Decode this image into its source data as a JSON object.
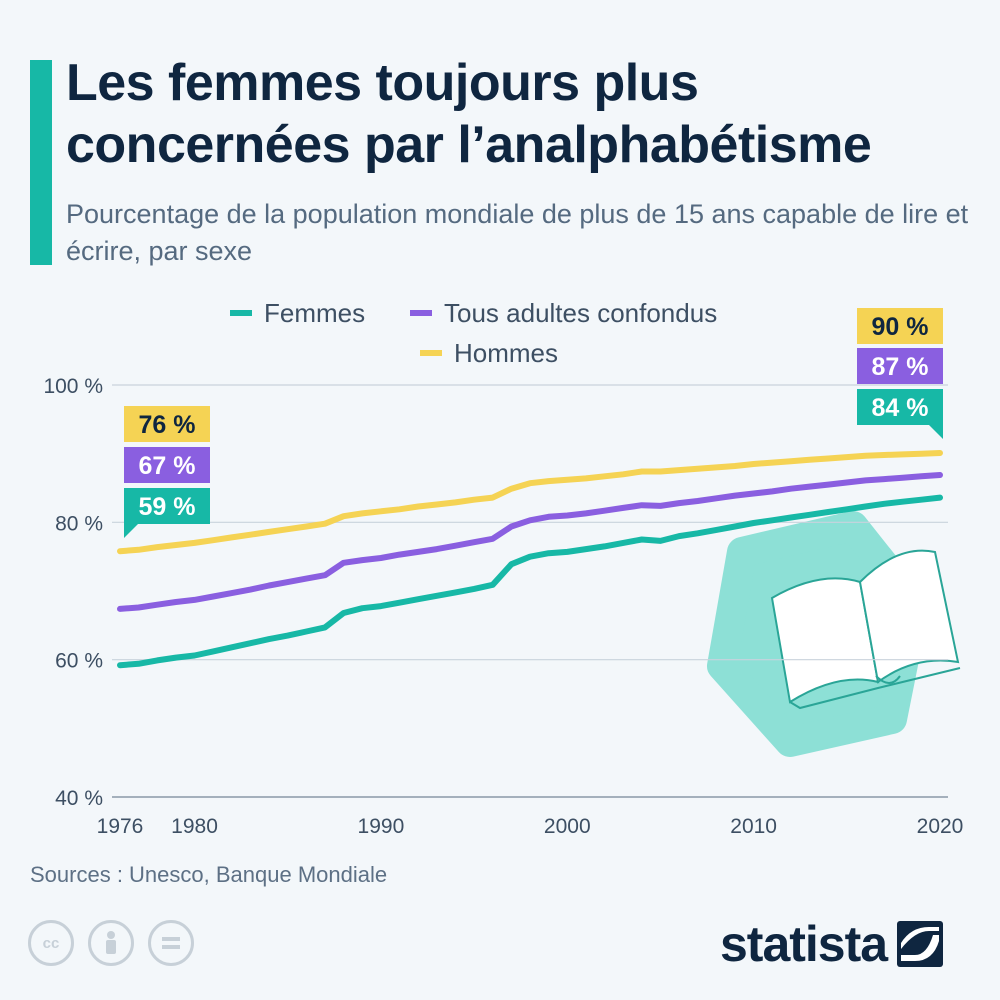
{
  "header": {
    "title": "Les femmes toujours plus concernées par l’analphabétisme",
    "subtitle": "Pourcentage de la population mondiale de plus de 15 ans capable de lire et écrire, par sexe"
  },
  "footer": {
    "source": "Sources : Unesco, Banque Mondiale",
    "brand": "statista",
    "license_icons": [
      "cc-icon",
      "attribution-icon",
      "no-derivatives-icon"
    ]
  },
  "colors": {
    "accent": "#17b8a6",
    "femmes": "#17b8a6",
    "tous": "#8a5fe0",
    "hommes": "#f5d354",
    "title": "#0f2640"
  },
  "chart_data": {
    "type": "line",
    "title": "Les femmes toujours plus concernées par l’analphabétisme",
    "subtitle": "Pourcentage de la population mondiale de plus de 15 ans capable de lire et écrire, par sexe",
    "xlabel": "",
    "ylabel": "",
    "xlim": [
      1976,
      2020
    ],
    "ylim": [
      40,
      100
    ],
    "yticks": [
      40,
      60,
      80,
      100
    ],
    "ytick_labels": [
      "40 %",
      "60 %",
      "80 %",
      "100 %"
    ],
    "xticks": [
      1976,
      1980,
      1990,
      2000,
      2010,
      2020
    ],
    "xtick_labels": [
      "1976",
      "1980",
      "1990",
      "2000",
      "2010",
      "2020"
    ],
    "grid": true,
    "legend_position": "top-center",
    "x": [
      1976,
      1977,
      1978,
      1979,
      1980,
      1981,
      1982,
      1983,
      1984,
      1985,
      1986,
      1987,
      1988,
      1989,
      1990,
      1991,
      1992,
      1993,
      1994,
      1995,
      1996,
      1997,
      1998,
      1999,
      2000,
      2001,
      2002,
      2003,
      2004,
      2005,
      2006,
      2007,
      2008,
      2009,
      2010,
      2011,
      2012,
      2013,
      2014,
      2015,
      2016,
      2017,
      2018,
      2019,
      2020
    ],
    "series": [
      {
        "key": "femmes",
        "name": "Femmes",
        "values": [
          59.2,
          59.4,
          59.9,
          60.3,
          60.6,
          61.2,
          61.8,
          62.4,
          63,
          63.5,
          64.1,
          64.7,
          66.8,
          67.5,
          67.8,
          68.3,
          68.8,
          69.3,
          69.8,
          70.3,
          70.9,
          73.9,
          75,
          75.5,
          75.7,
          76.1,
          76.5,
          77,
          77.5,
          77.3,
          78,
          78.4,
          78.9,
          79.4,
          79.9,
          80.3,
          80.7,
          81.1,
          81.5,
          81.9,
          82.3,
          82.7,
          83,
          83.3,
          83.6
        ],
        "start_label": "59 %",
        "end_label": "84 %"
      },
      {
        "key": "tous",
        "name": "Tous adultes confondus",
        "values": [
          67.4,
          67.6,
          68,
          68.4,
          68.7,
          69.2,
          69.7,
          70.2,
          70.8,
          71.3,
          71.8,
          72.3,
          74.1,
          74.5,
          74.8,
          75.3,
          75.7,
          76.1,
          76.6,
          77.1,
          77.6,
          79.4,
          80.3,
          80.8,
          81,
          81.3,
          81.7,
          82.1,
          82.5,
          82.4,
          82.8,
          83.1,
          83.5,
          83.9,
          84.2,
          84.5,
          84.9,
          85.2,
          85.5,
          85.8,
          86.1,
          86.3,
          86.5,
          86.7,
          86.9
        ],
        "start_label": "67 %",
        "end_label": "87 %"
      },
      {
        "key": "hommes",
        "name": "Hommes",
        "values": [
          75.8,
          76,
          76.4,
          76.7,
          77,
          77.4,
          77.8,
          78.2,
          78.6,
          79,
          79.4,
          79.8,
          80.9,
          81.3,
          81.6,
          81.9,
          82.3,
          82.6,
          82.9,
          83.3,
          83.6,
          84.9,
          85.7,
          86,
          86.2,
          86.4,
          86.7,
          87,
          87.4,
          87.4,
          87.6,
          87.8,
          88,
          88.2,
          88.5,
          88.7,
          88.9,
          89.1,
          89.3,
          89.5,
          89.7,
          89.8,
          89.9,
          90,
          90.1
        ],
        "start_label": "76 %",
        "end_label": "90 %"
      }
    ]
  }
}
